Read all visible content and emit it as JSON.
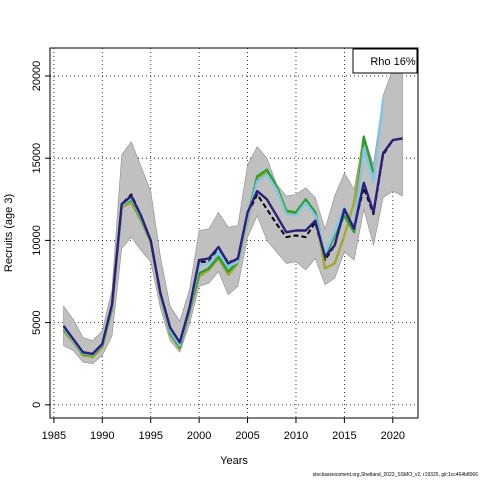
{
  "chart_data": {
    "type": "line",
    "xlabel": "Years",
    "ylabel": "Recruits (age 3)",
    "xlim": [
      1984.6,
      2022.6
    ],
    "ylim": [
      -800,
      21700
    ],
    "x_ticks": [
      1985,
      1990,
      1995,
      2000,
      2005,
      2010,
      2015,
      2020
    ],
    "y_ticks": [
      0,
      5000,
      10000,
      15000,
      20000
    ],
    "grid": "dotted",
    "legend": {
      "text": "Rho 16%",
      "position": "top-right"
    },
    "colors": {
      "band": "#c0c0c0",
      "band_edge": "#8c8c8c",
      "dashed": "#000000",
      "navy": "#2a1f7a",
      "green": "#2ca02c",
      "olive": "#a6a632",
      "light_blue": "#7fc6e8",
      "grid": "#000000"
    },
    "years": [
      1986,
      1987,
      1988,
      1989,
      1990,
      1991,
      1992,
      1993,
      1994,
      1995,
      1996,
      1997,
      1998,
      1999,
      2000,
      2001,
      2002,
      2003,
      2004,
      2005,
      2006,
      2007,
      2008,
      2009,
      2010,
      2011,
      2012,
      2013,
      2014,
      2015,
      2016,
      2017,
      2018,
      2019,
      2020,
      2021
    ],
    "band_upper": [
      6000,
      5200,
      4100,
      3900,
      4500,
      7000,
      15200,
      16000,
      14500,
      13000,
      9000,
      6000,
      5100,
      7000,
      10600,
      10700,
      11700,
      10800,
      10900,
      14600,
      15700,
      15000,
      13400,
      12700,
      12800,
      13200,
      12600,
      10700,
      12700,
      14100,
      13100,
      16400,
      14600,
      18800,
      20400,
      20600
    ],
    "band_lower": [
      3600,
      3300,
      2600,
      2500,
      3000,
      4200,
      9500,
      10200,
      9400,
      8700,
      5900,
      3900,
      3200,
      4900,
      7200,
      7400,
      8100,
      6700,
      7200,
      10200,
      11500,
      10000,
      9300,
      8600,
      8700,
      8200,
      8900,
      7300,
      7700,
      9300,
      8800,
      11900,
      9700,
      12600,
      13000,
      12700
    ],
    "series": [
      {
        "name": "",
        "style": "dashed",
        "color": "dashed",
        "x": [
          1986,
          1987,
          1988,
          1989,
          1990,
          1991,
          1992,
          1993,
          1994,
          1995,
          1996,
          1997,
          1998,
          1999,
          2000,
          2001,
          2002,
          2003,
          2004,
          2005,
          2006,
          2007,
          2008,
          2009,
          2010,
          2011,
          2012,
          2013,
          2014,
          2015,
          2016,
          2017,
          2018,
          2019,
          2020,
          2021
        ],
        "values": [
          4800,
          3950,
          3200,
          3100,
          3700,
          6100,
          12200,
          12800,
          11500,
          10000,
          6800,
          4700,
          3700,
          5900,
          8700,
          8700,
          9400,
          8700,
          8800,
          11600,
          12800,
          11900,
          11000,
          10200,
          10300,
          10200,
          11100,
          8800,
          9700,
          11800,
          10800,
          13200,
          11600,
          15200,
          16100,
          16200
        ]
      },
      {
        "name": "",
        "style": "solid",
        "color": "olive",
        "x": [
          1986,
          1987,
          1988,
          1989,
          1990,
          1991,
          1992,
          1993,
          1994,
          1995,
          1996,
          1997,
          1998,
          1999,
          2000,
          2001,
          2002,
          2003,
          2004,
          2005,
          2006,
          2007,
          2008,
          2009,
          2010,
          2011,
          2012,
          2013,
          2014,
          2015,
          2016,
          2017
        ],
        "values": [
          4500,
          3800,
          3000,
          2900,
          3500,
          5800,
          12000,
          12300,
          11200,
          9900,
          6600,
          4300,
          3400,
          5600,
          7800,
          8200,
          8900,
          7900,
          8600,
          11200,
          13800,
          14100,
          13200,
          11700,
          11600,
          12400,
          11600,
          8300,
          8600,
          10300,
          12300,
          16300
        ]
      },
      {
        "name": "",
        "style": "solid",
        "color": "green",
        "x": [
          1986,
          1987,
          1988,
          1989,
          1990,
          1991,
          1992,
          1993,
          1994,
          1995,
          1996,
          1997,
          1998,
          1999,
          2000,
          2001,
          2002,
          2003,
          2004,
          2005,
          2006,
          2007,
          2008,
          2009,
          2010,
          2011,
          2012,
          2013,
          2014,
          2015,
          2016,
          2017,
          2018
        ],
        "values": [
          4600,
          3900,
          3100,
          3000,
          3600,
          5900,
          12100,
          12500,
          11300,
          10000,
          6700,
          4400,
          3500,
          5700,
          8000,
          8300,
          9000,
          8100,
          8700,
          11400,
          13900,
          14300,
          13300,
          11800,
          11700,
          12500,
          11700,
          9000,
          10300,
          11500,
          10500,
          16300,
          14100
        ]
      },
      {
        "name": "",
        "style": "solid",
        "color": "light_blue",
        "x": [
          1986,
          1987,
          1988,
          1989,
          1990,
          1991,
          1992,
          1993,
          1994,
          1995,
          1996,
          1997,
          1998,
          1999,
          2000,
          2001,
          2002,
          2003,
          2004,
          2005,
          2006,
          2007,
          2008,
          2009,
          2010,
          2011,
          2012,
          2013,
          2014,
          2015,
          2016,
          2017,
          2018,
          2019
        ],
        "values": [
          4700,
          3900,
          3150,
          3050,
          3650,
          6000,
          12100,
          12600,
          11400,
          10000,
          6700,
          4500,
          3600,
          5800,
          8500,
          8600,
          9300,
          8400,
          8700,
          11400,
          13600,
          14000,
          13100,
          11600,
          11500,
          12300,
          11500,
          9200,
          10500,
          12000,
          10700,
          15600,
          13600,
          18600
        ]
      },
      {
        "name": "",
        "style": "solid",
        "color": "navy",
        "x": [
          1986,
          1987,
          1988,
          1989,
          1990,
          1991,
          1992,
          1993,
          1994,
          1995,
          1996,
          1997,
          1998,
          1999,
          2000,
          2001,
          2002,
          2003,
          2004,
          2005,
          2006,
          2007,
          2008,
          2009,
          2010,
          2011,
          2012,
          2013,
          2014,
          2015,
          2016,
          2017,
          2018,
          2019,
          2020,
          2021
        ],
        "values": [
          4800,
          4000,
          3200,
          3100,
          3700,
          6100,
          12200,
          12700,
          11500,
          10000,
          6800,
          4700,
          3800,
          5900,
          8800,
          8900,
          9600,
          8600,
          8900,
          11700,
          13000,
          12500,
          11500,
          10500,
          10600,
          10600,
          11200,
          9000,
          9700,
          11900,
          10700,
          13500,
          11700,
          15300,
          16100,
          16200
        ]
      }
    ]
  },
  "footer_text": "stockassessment.org,Shetland_2022_SSMO_v2, r19325, git:1cc464b8066"
}
